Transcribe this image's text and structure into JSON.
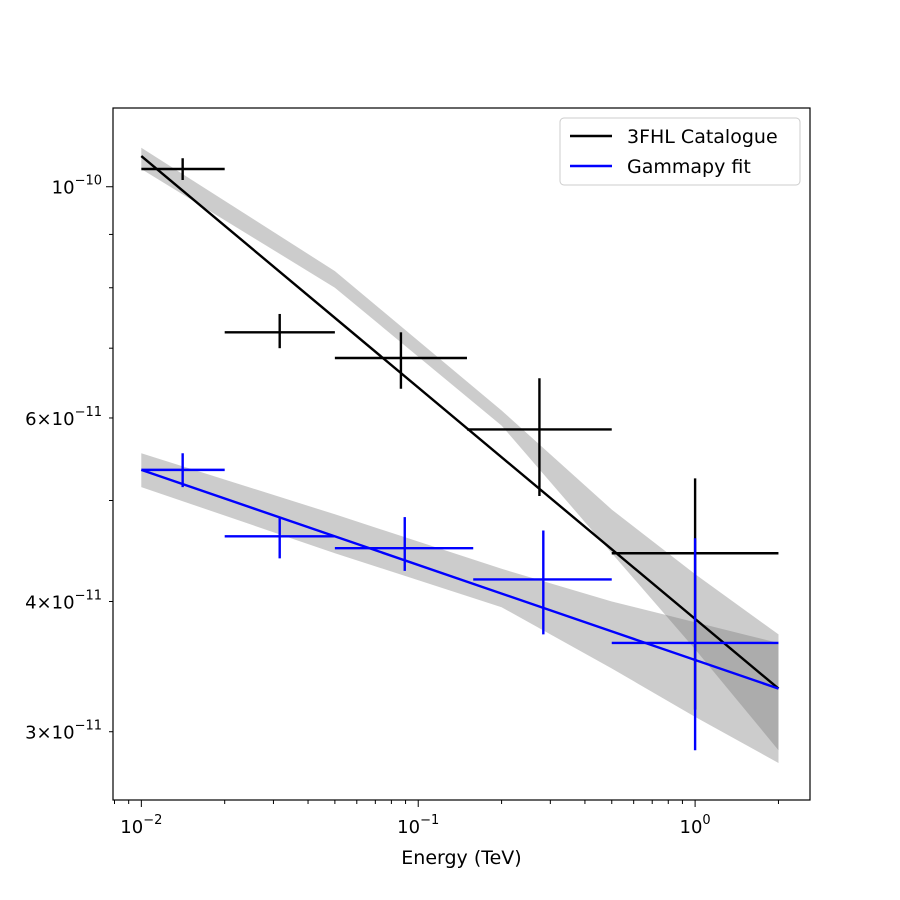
{
  "chart_data": {
    "type": "line",
    "xlabel": "Energy (TeV)",
    "ylabel": "",
    "xscale": "log",
    "yscale": "log",
    "xlim": [
      0.0079,
      2.6
    ],
    "ylim": [
      2.58e-11,
      1.19e-10
    ],
    "grid": false,
    "legend_position": "top-right",
    "x_ticks": [
      {
        "value": 0.01,
        "base": "10",
        "exp": "−2"
      },
      {
        "value": 0.1,
        "base": "10",
        "exp": "−1"
      },
      {
        "value": 1,
        "base": "10",
        "exp": "0"
      }
    ],
    "y_ticks": [
      {
        "value": 1e-10,
        "mant": "",
        "base": "10",
        "exp": "−10"
      },
      {
        "value": 6e-11,
        "mant": "6×",
        "base": "10",
        "exp": "−11"
      },
      {
        "value": 4e-11,
        "mant": "4×",
        "base": "10",
        "exp": "−11"
      },
      {
        "value": 3e-11,
        "mant": "3×",
        "base": "10",
        "exp": "−11"
      }
    ],
    "series": [
      {
        "name": "3FHL Catalogue",
        "color": "#000000",
        "model_line": {
          "x": [
            0.01,
            2.0
          ],
          "y": [
            1.07e-10,
            3.3e-11
          ]
        },
        "band": {
          "x": [
            0.01,
            0.05,
            0.2,
            0.5,
            1.0,
            2.0
          ],
          "y_low": [
            1.04e-10,
            8e-11,
            5.9e-11,
            4.45e-11,
            3.6e-11,
            2.88e-11
          ],
          "y_high": [
            1.09e-10,
            8.3e-11,
            6.1e-11,
            4.9e-11,
            4.25e-11,
            3.72e-11
          ]
        },
        "points": [
          {
            "x": 0.0141,
            "y": 1.04e-10,
            "x_lo": 0.01,
            "x_hi": 0.02,
            "y_lo": 1.015e-10,
            "y_hi": 1.065e-10
          },
          {
            "x": 0.0316,
            "y": 7.25e-11,
            "x_lo": 0.02,
            "x_hi": 0.05,
            "y_lo": 7e-11,
            "y_hi": 7.55e-11
          },
          {
            "x": 0.0866,
            "y": 6.85e-11,
            "x_lo": 0.05,
            "x_hi": 0.15,
            "y_lo": 6.4e-11,
            "y_hi": 7.25e-11
          },
          {
            "x": 0.274,
            "y": 5.85e-11,
            "x_lo": 0.15,
            "x_hi": 0.5,
            "y_lo": 5.05e-11,
            "y_hi": 6.55e-11
          },
          {
            "x": 1.0,
            "y": 4.45e-11,
            "x_lo": 0.5,
            "x_hi": 2.0,
            "y_lo": 3.15e-11,
            "y_hi": 5.25e-11
          }
        ]
      },
      {
        "name": "Gammapy fit",
        "color": "#0000ff",
        "model_line": {
          "x": [
            0.01,
            2.0
          ],
          "y": [
            5.35e-11,
            3.3e-11
          ]
        },
        "band": {
          "x": [
            0.01,
            0.05,
            0.2,
            0.5,
            1.0,
            2.0
          ],
          "y_low": [
            5.15e-11,
            4.45e-11,
            3.95e-11,
            3.45e-11,
            3.1e-11,
            2.8e-11
          ],
          "y_high": [
            5.55e-11,
            4.85e-11,
            4.3e-11,
            4e-11,
            3.82e-11,
            3.65e-11
          ]
        },
        "points": [
          {
            "x": 0.0141,
            "y": 5.35e-11,
            "x_lo": 0.01,
            "x_hi": 0.02,
            "y_lo": 5.15e-11,
            "y_hi": 5.55e-11
          },
          {
            "x": 0.0316,
            "y": 4.62e-11,
            "x_lo": 0.02,
            "x_hi": 0.05,
            "y_lo": 4.4e-11,
            "y_hi": 4.82e-11
          },
          {
            "x": 0.0894,
            "y": 4.5e-11,
            "x_lo": 0.05,
            "x_hi": 0.158,
            "y_lo": 4.28e-11,
            "y_hi": 4.82e-11
          },
          {
            "x": 0.283,
            "y": 4.2e-11,
            "x_lo": 0.158,
            "x_hi": 0.5,
            "y_lo": 3.72e-11,
            "y_hi": 4.68e-11
          },
          {
            "x": 1.0,
            "y": 3.65e-11,
            "x_lo": 0.5,
            "x_hi": 2.0,
            "y_lo": 2.88e-11,
            "y_hi": 4.6e-11
          }
        ]
      }
    ]
  }
}
